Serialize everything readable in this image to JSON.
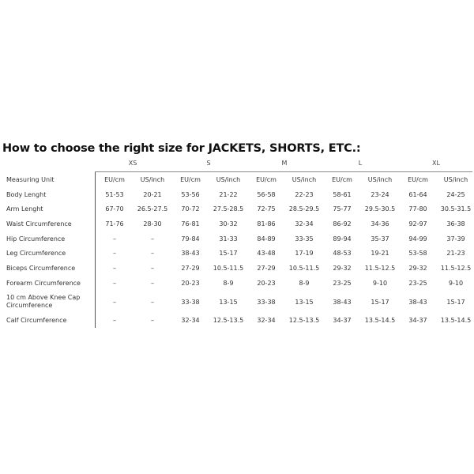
{
  "title": "How to choose the right size for JACKETS, SHORTS, ETC.:",
  "sizes": [
    "XS",
    "S",
    "M",
    "L",
    "XL"
  ],
  "rows": [
    {
      "label": "Measuring Unit",
      "values": [
        "EU/cm",
        "US/inch",
        "EU/cm",
        "US/inch",
        "EU/cm",
        "US/inch",
        "EU/cm",
        "US/inch",
        "EU/cm",
        "US/inch"
      ]
    },
    {
      "label": "Body Lenght",
      "values": [
        "51-53",
        "20-21",
        "53-56",
        "21-22",
        "56-58",
        "22-23",
        "58-61",
        "23-24",
        "61-64",
        "24-25"
      ]
    },
    {
      "label": "Arm Lenght",
      "values": [
        "67-70",
        "26.5-27.5",
        "70-72",
        "27.5-28.5",
        "72-75",
        "28.5-29.5",
        "75-77",
        "29.5-30.5",
        "77-80",
        "30.5-31.5"
      ]
    },
    {
      "label": "Waist Circumference",
      "values": [
        "71-76",
        "28-30",
        "76-81",
        "30-32",
        "81-86",
        "32-34",
        "86-92",
        "34-36",
        "92-97",
        "36-38"
      ]
    },
    {
      "label": "Hip Circumference",
      "values": [
        "–",
        "–",
        "79-84",
        "31-33",
        "84-89",
        "33-35",
        "89-94",
        "35-37",
        "94-99",
        "37-39"
      ]
    },
    {
      "label": "Leg Circumference",
      "values": [
        "–",
        "–",
        "38-43",
        "15-17",
        "43-48",
        "17-19",
        "48-53",
        "19-21",
        "53-58",
        "21-23"
      ]
    },
    {
      "label": "Biceps Circumference",
      "values": [
        "–",
        "–",
        "27-29",
        "10.5-11.5",
        "27-29",
        "10.5-11.5",
        "29-32",
        "11.5-12.5",
        "29-32",
        "11.5-12.5"
      ]
    },
    {
      "label": "Forearm Circumference",
      "values": [
        "–",
        "–",
        "20-23",
        "8-9",
        "20-23",
        "8-9",
        "23-25",
        "9-10",
        "23-25",
        "9-10"
      ]
    },
    {
      "label": "10 cm Above Knee Cap Circumference",
      "values": [
        "–",
        "–",
        "33-38",
        "13-15",
        "33-38",
        "13-15",
        "38-43",
        "15-17",
        "38-43",
        "15-17"
      ]
    },
    {
      "label": "Calf Circumference",
      "values": [
        "–",
        "–",
        "32-34",
        "12.5-13.5",
        "32-34",
        "12.5-13.5",
        "34-37",
        "13.5-14.5",
        "34-37",
        "13.5-14.5"
      ]
    }
  ]
}
